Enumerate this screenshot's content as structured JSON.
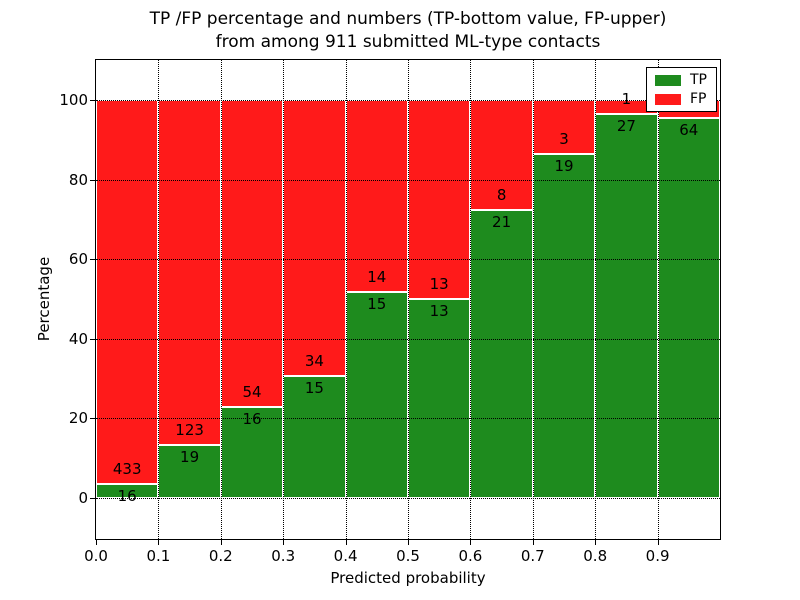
{
  "chart_data": {
    "type": "bar",
    "stacked": true,
    "title_line1": "TP /FP percentage and numbers (TP-bottom value, FP-upper)",
    "title_line2": "from among 911 submitted ML-type contacts",
    "xlabel": "Predicted probability",
    "ylabel": "Percentage",
    "x_ticks": [
      "0.0",
      "0.1",
      "0.2",
      "0.3",
      "0.4",
      "0.5",
      "0.6",
      "0.7",
      "0.8",
      "0.9"
    ],
    "y_ticks": [
      0,
      20,
      40,
      60,
      80,
      100
    ],
    "xlim": [
      0.0,
      1.0
    ],
    "ylim": [
      -10.3,
      110.1
    ],
    "grid": "dotted black, both axes, drawn over bars",
    "bar_edge_color": "#ffffff",
    "colors": {
      "tp": "#1e8b1e",
      "fp": "#ff1a1a",
      "axis": "#000000",
      "background": "#ffffff"
    },
    "legend": {
      "position": "upper-right",
      "entries": [
        {
          "label": "TP",
          "color": "#1e8b1e"
        },
        {
          "label": "FP",
          "color": "#ff1a1a"
        }
      ]
    },
    "bins": [
      {
        "range": "0.0-0.1",
        "tp": 16,
        "fp": 433,
        "tp_label": "16",
        "fp_label": "433",
        "tp_pct": 3.56
      },
      {
        "range": "0.1-0.2",
        "tp": 19,
        "fp": 123,
        "tp_label": "19",
        "fp_label": "123",
        "tp_pct": 13.38
      },
      {
        "range": "0.2-0.3",
        "tp": 16,
        "fp": 54,
        "tp_label": "16",
        "fp_label": "54",
        "tp_pct": 22.86
      },
      {
        "range": "0.3-0.4",
        "tp": 15,
        "fp": 34,
        "tp_label": "15",
        "fp_label": "34",
        "tp_pct": 30.61
      },
      {
        "range": "0.4-0.5",
        "tp": 15,
        "fp": 14,
        "tp_label": "15",
        "fp_label": "14",
        "tp_pct": 51.72
      },
      {
        "range": "0.5-0.6",
        "tp": 13,
        "fp": 13,
        "tp_label": "13",
        "fp_label": "13",
        "tp_pct": 50.0
      },
      {
        "range": "0.6-0.7",
        "tp": 21,
        "fp": 8,
        "tp_label": "21",
        "fp_label": "8",
        "tp_pct": 72.41
      },
      {
        "range": "0.7-0.8",
        "tp": 19,
        "fp": 3,
        "tp_label": "19",
        "fp_label": "3",
        "tp_pct": 86.36
      },
      {
        "range": "0.8-0.9",
        "tp": 27,
        "fp": 1,
        "tp_label": "27",
        "fp_label": "1",
        "tp_pct": 96.43
      },
      {
        "range": "0.9-1.0",
        "tp": 64,
        "tp_label": "64",
        "fp_label": "",
        "tp_pct": 95.52
      }
    ]
  }
}
